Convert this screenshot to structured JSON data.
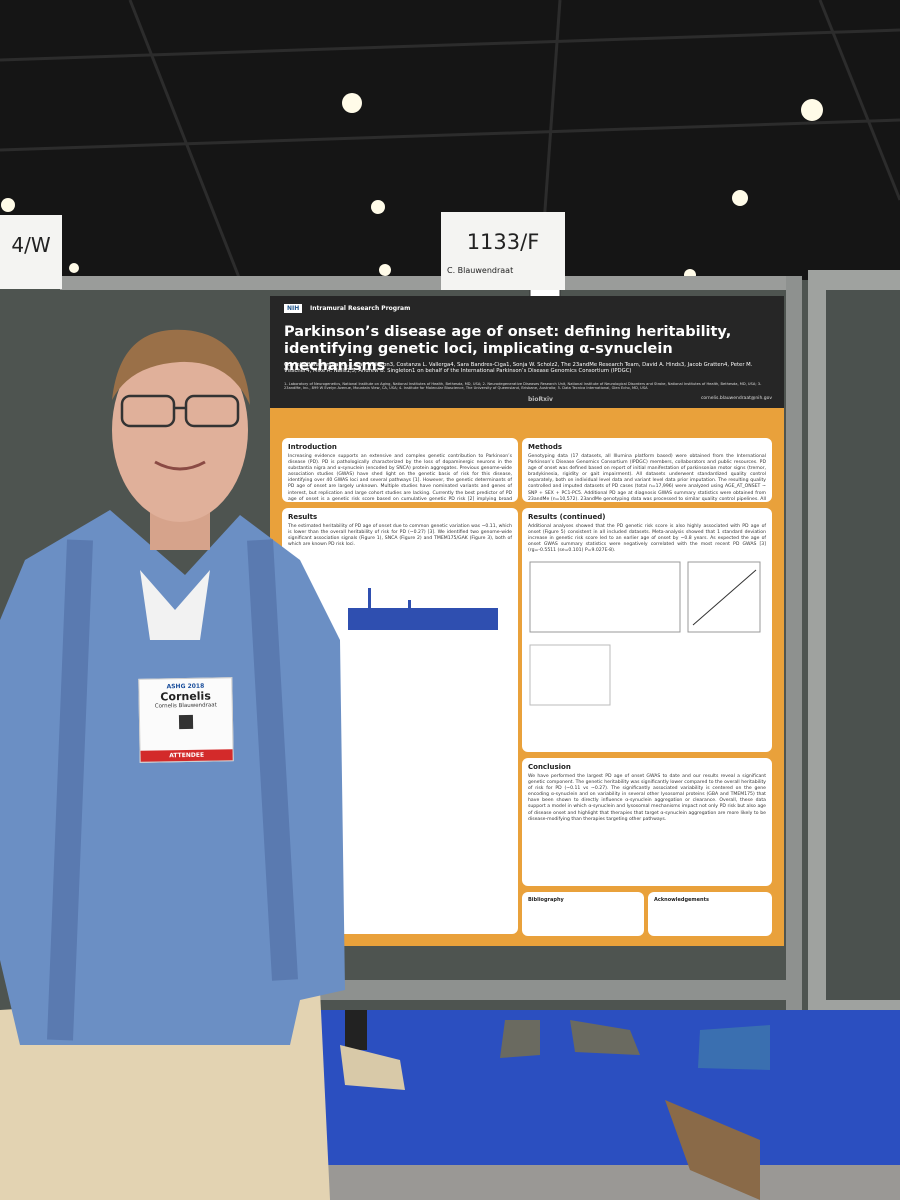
{
  "signs": {
    "left": "4/W",
    "board_number": "1133/F",
    "presenter": "C. Blauwendraat"
  },
  "poster": {
    "logos": [
      "NIH",
      "Intramural Research Program",
      "bioRxiv"
    ],
    "title": "Parkinson’s disease age of onset: defining heritability, identifying genetic loci, implicating α-synuclein mechanisms",
    "authors": "Cornelis Blauwendraat1,2, Karl Heilbron3, Costanza L. Vallerga4, Sara Bandres-Ciga1, Sonja W. Scholz2, The 23andMe Research Team, David A. Hinds3, Jacob Gratten4, Peter M. Visscher4, Mike A. Nalls1,5, Andrew B. Singleton1 on behalf of the International Parkinson’s Disease Genomics Consortium (IPDGC)",
    "affiliations": "1- Laboratory of Neurogenetics, National Institute on Aging, National Institutes of Health, Bethesda, MD, USA; 2- Neurodegenerative Diseases Research Unit, National Institute of Neurological Disorders and Stroke, National Institutes of Health, Bethesda, MD, USA; 3- 23andMe, Inc., 899 W Evelyn Avenue, Mountain View, CA, USA; 4- Institute for Molecular Bioscience, The University of Queensland, Brisbane, Australia; 5- Data Tecnica International, Glen Echo, MD, USA",
    "email": "cornelis.blauwendraat@nih.gov",
    "introduction": {
      "heading": "Introduction",
      "text": "Increasing evidence supports an extensive and complex genetic contribution to Parkinson’s disease (PD). PD is pathologically characterized by the loss of dopaminergic neurons in the substantia nigra and α-synuclein (encoded by SNCA) protein aggregates. Previous genome-wide association studies (GWAS) have shed light on the genetic basis of risk for this disease, identifying over 40 GWAS loci and several pathways [1]. However, the genetic determinants of PD age of onset are largely unknown. Multiple studies have nominated variants and genes of interest, but replication and large cohort studies are lacking. Currently the best predictor of PD age of onset is a genetic risk score based on cumulative genetic PD risk [2] implying broad genetic overlap between PD susceptibility and PD age of onset. In this study, we performed the largest PD age of onset GWAS to date including 28,568 PD cases."
    },
    "methods": {
      "heading": "Methods",
      "text": "Genotyping data (17 datasets, all Illumina platform based) were obtained from the International Parkinson’s Disease Genomics Consortium (IPDGC) members, collaborators and public resources. PD age of onset was defined based on report of initial manifestation of parkinsonian motor signs (tremor, bradykinesia, rigidity or gait impairment). All datasets underwent standardized quality control separately, both on individual level data and variant level data prior imputation. The resulting quality controlled and imputed datasets of PD cases (total n=17,996) were analyzed using AGE_AT_ONSET ~ SNP + SEX + PC1-PC5. Additional PD age at diagnosis GWAS summary statistics were obtained from 23andMe (n=10,572). 23andMe genotyping data was processed to similar quality control pipelines. All summary statistics were meta-analyzed and showed no sign of genomic inflation (λ = 1.001)."
    },
    "results": {
      "heading": "Results",
      "text": "The estimated heritability of PD age of onset due to common genetic variation was ~0.11, which is lower than the overall heritability of risk for PD (~0.27) [3]. We identified two genome-wide significant association signals (Figure 1), SNCA (Figure 2) and TMEM175/GAK (Figure 3), both of which are known PD risk loci."
    },
    "results_continued": {
      "heading": "Results (continued)",
      "text": "Additional analyses showed that the PD genetic risk score is also highly associated with PD age of onset (Figure 5) consistent in all included datasets. Meta-analysis showed that 1 standard deviation increase in genetic risk score led to an earlier age of onset by ~0.8 years. As expected the age of onset GWAS summary statistics were negatively correlated with the most recent PD GWAS [3] (rg=-0.5511 (se=0.101) P=9.027E-8)."
    },
    "conclusion": {
      "heading": "Conclusion",
      "text": "We have performed the largest PD age of onset GWAS to date and our results reveal a significant genetic component. The genetic heritability was significantly lower compared to the overall heritability of risk for PD (~0.11 vs ~0.27). The significantly associated variability is centered on the gene encoding α-synuclein and on variability in several other lysosomal proteins (GBA and TMEM175) that have been shown to directly influence α-synuclein aggregation or clearance. Overall, these data support a model in which α-synuclein and lysosomal mechanisms impact not only PD risk but also age of disease onset and highlight that therapies that target α-synuclein aggregation are more likely to be disease-modifying than therapies targeting other pathways."
    },
    "bibliography": {
      "heading": "Bibliography"
    },
    "acknowledgements": {
      "heading": "Acknowledgements"
    }
  },
  "badge": {
    "first_name": "Cornelis",
    "full_name": "Cornelis Blauwendraat",
    "event": "ASHG 2018",
    "role": "ATTENDEE"
  }
}
